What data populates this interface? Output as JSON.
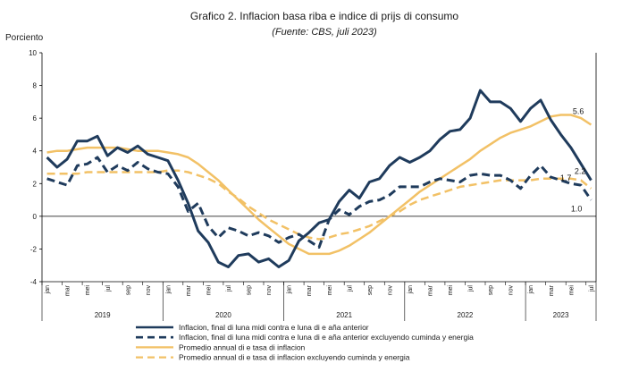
{
  "chart_data": {
    "type": "line",
    "title": "Grafico 2. Inflacion basa riba e indice di prijs di consumo",
    "subtitle": "(Fuente: CBS, juli 2023)",
    "ylabel": "Porciento",
    "ylim": [
      -4,
      10
    ],
    "yticks": [
      -4,
      -2,
      0,
      2,
      4,
      6,
      8,
      10
    ],
    "grid": false,
    "legend_position": "bottom",
    "x": [
      "jan",
      "feb",
      "mar",
      "apr",
      "mei",
      "jun",
      "jul",
      "aug",
      "sep",
      "okt",
      "nov",
      "dec",
      "jan",
      "feb",
      "mar",
      "apr",
      "mei",
      "jun",
      "jul",
      "aug",
      "sep",
      "okt",
      "nov",
      "dec",
      "jan",
      "feb",
      "mar",
      "apr",
      "mei",
      "jun",
      "jul",
      "aug",
      "sep",
      "okt",
      "nov",
      "dec",
      "jan",
      "feb",
      "mar",
      "apr",
      "mei",
      "jun",
      "jul",
      "aug",
      "sep",
      "okt",
      "nov",
      "dec",
      "jan",
      "feb",
      "mar",
      "apr",
      "mei",
      "jun",
      "jul"
    ],
    "x_tick_labels": [
      "jan",
      "mar",
      "mei",
      "jul",
      "sep",
      "nov",
      "jan",
      "mar",
      "mei",
      "jul",
      "sep",
      "nov",
      "jan",
      "mar",
      "mei",
      "jul",
      "sep",
      "nov",
      "jan",
      "mar",
      "mei",
      "jul",
      "sep",
      "nov",
      "jan",
      "mar",
      "mei",
      "jul"
    ],
    "years": [
      "2019",
      "2020",
      "2021",
      "2022",
      "2023"
    ],
    "series": [
      {
        "name": "Inflacion, final di luna midi contra e luna di e aña anterior",
        "color": "#1f3b5c",
        "style": "solid",
        "width": 3,
        "end_label": "2.2",
        "values": [
          3.6,
          3.0,
          3.5,
          4.6,
          4.6,
          4.9,
          3.7,
          4.2,
          3.9,
          4.3,
          3.8,
          3.6,
          3.4,
          2.2,
          0.8,
          -0.9,
          -1.6,
          -2.8,
          -3.1,
          -2.4,
          -2.3,
          -2.8,
          -2.6,
          -3.1,
          -2.7,
          -1.5,
          -1.0,
          -0.4,
          -0.2,
          0.9,
          1.6,
          1.1,
          2.1,
          2.3,
          3.1,
          3.6,
          3.3,
          3.6,
          4.0,
          4.7,
          5.2,
          5.3,
          6.0,
          7.7,
          7.0,
          7.0,
          6.6,
          5.8,
          6.6,
          7.1,
          5.9,
          5.0,
          4.2,
          3.2,
          2.2
        ]
      },
      {
        "name": "Inflacion, final di luna midi contra e luna di e aña anterior excluyendo cuminda y energia",
        "color": "#1f3b5c",
        "style": "dashed",
        "width": 3,
        "end_label": "1.0",
        "values": [
          2.3,
          2.1,
          1.9,
          3.1,
          3.2,
          3.6,
          2.7,
          3.1,
          2.8,
          3.3,
          2.9,
          2.7,
          2.6,
          1.8,
          0.3,
          0.8,
          -0.6,
          -1.3,
          -0.7,
          -0.9,
          -1.2,
          -1.0,
          -1.2,
          -1.6,
          -1.3,
          -1.1,
          -1.5,
          -1.9,
          -0.2,
          0.4,
          0.1,
          0.6,
          0.9,
          1.0,
          1.3,
          1.8,
          1.8,
          1.8,
          2.1,
          2.3,
          2.2,
          2.1,
          2.5,
          2.6,
          2.5,
          2.5,
          2.2,
          1.7,
          2.5,
          3.1,
          2.4,
          2.2,
          2.0,
          1.9,
          1.0
        ]
      },
      {
        "name": "Promedio annual di e tasa di inflacion",
        "color": "#f2c166",
        "style": "solid",
        "width": 2.5,
        "end_label": "5.6",
        "values": [
          3.9,
          4.0,
          4.0,
          4.1,
          4.2,
          4.2,
          4.2,
          4.2,
          4.1,
          4.0,
          4.0,
          4.0,
          3.9,
          3.8,
          3.6,
          3.2,
          2.7,
          2.2,
          1.6,
          1.0,
          0.4,
          -0.2,
          -0.7,
          -1.2,
          -1.7,
          -2.0,
          -2.3,
          -2.3,
          -2.3,
          -2.1,
          -1.8,
          -1.4,
          -1.0,
          -0.5,
          0.0,
          0.5,
          1.0,
          1.5,
          1.9,
          2.3,
          2.7,
          3.1,
          3.5,
          4.0,
          4.4,
          4.8,
          5.1,
          5.3,
          5.5,
          5.8,
          6.1,
          6.2,
          6.2,
          6.0,
          5.6
        ]
      },
      {
        "name": "Promedio annual di e tasa di inflacion excluyendo cuminda y energia",
        "color": "#f2c166",
        "style": "dashed",
        "width": 2.5,
        "end_label": "1.7",
        "values": [
          2.6,
          2.6,
          2.6,
          2.6,
          2.7,
          2.7,
          2.7,
          2.7,
          2.7,
          2.7,
          2.7,
          2.7,
          2.8,
          2.8,
          2.7,
          2.5,
          2.3,
          2.0,
          1.5,
          1.1,
          0.6,
          0.2,
          -0.2,
          -0.5,
          -0.8,
          -1.1,
          -1.3,
          -1.4,
          -1.3,
          -1.1,
          -1.0,
          -0.8,
          -0.6,
          -0.3,
          0.0,
          0.3,
          0.7,
          1.0,
          1.2,
          1.4,
          1.6,
          1.8,
          1.9,
          2.0,
          2.1,
          2.2,
          2.2,
          2.2,
          2.2,
          2.3,
          2.3,
          2.3,
          2.3,
          2.2,
          1.7
        ]
      }
    ]
  }
}
